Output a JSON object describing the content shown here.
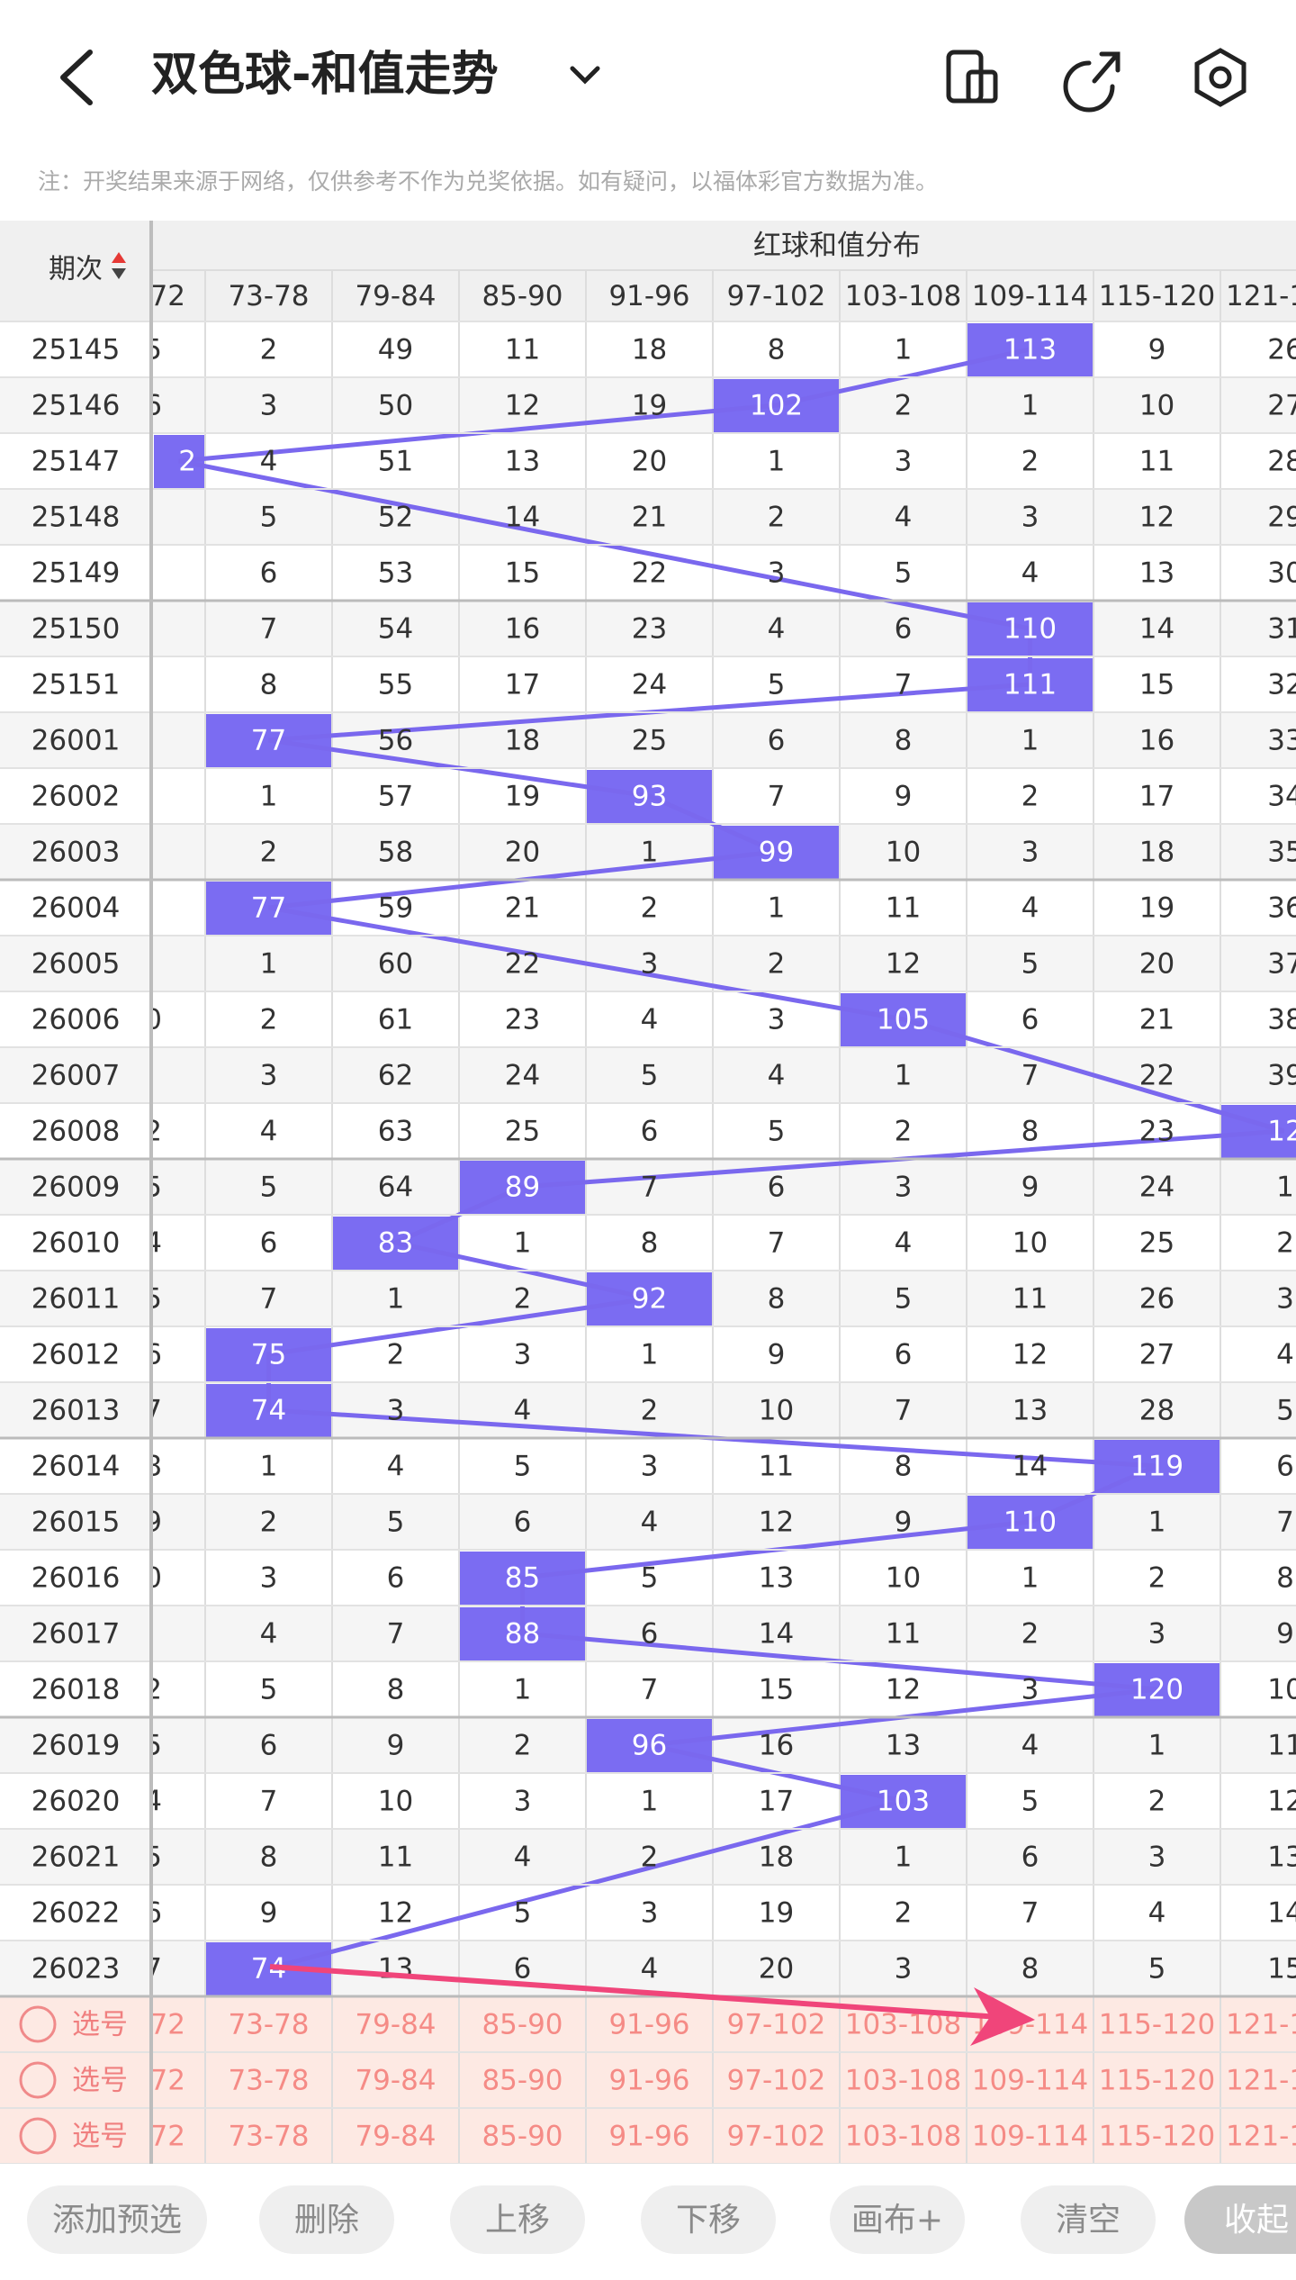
{
  "header": {
    "title": "双色球-和值走势"
  },
  "notice": "注：开奖结果来源于网络，仅供参考不作为兑奖依据。如有疑问，以福体彩官方数据为准。",
  "table": {
    "period_header": "期次",
    "group_header": "红球和值分布",
    "columns": [
      "72",
      "73-78",
      "79-84",
      "85-90",
      "91-96",
      "97-102",
      "103-108",
      "109-114",
      "115-120",
      "121-1"
    ],
    "rows": [
      {
        "period": "25145",
        "cells": [
          5,
          2,
          49,
          11,
          18,
          8,
          1,
          113,
          9,
          26
        ],
        "hit": 7
      },
      {
        "period": "25146",
        "cells": [
          6,
          3,
          50,
          12,
          19,
          102,
          2,
          1,
          10,
          27
        ],
        "hit": 5
      },
      {
        "period": "25147",
        "cells": [
          2,
          4,
          51,
          13,
          20,
          1,
          3,
          2,
          11,
          28
        ],
        "hit": 0
      },
      {
        "period": "25148",
        "cells": [
          null,
          5,
          52,
          14,
          21,
          2,
          4,
          3,
          12,
          29
        ],
        "hit": null
      },
      {
        "period": "25149",
        "cells": [
          null,
          6,
          53,
          15,
          22,
          3,
          5,
          4,
          13,
          30
        ],
        "hit": null
      },
      {
        "period": "25150",
        "cells": [
          null,
          7,
          54,
          16,
          23,
          4,
          6,
          110,
          14,
          31
        ],
        "hit": 7
      },
      {
        "period": "25151",
        "cells": [
          null,
          8,
          55,
          17,
          24,
          5,
          7,
          111,
          15,
          32
        ],
        "hit": 7
      },
      {
        "period": "26001",
        "cells": [
          null,
          77,
          56,
          18,
          25,
          6,
          8,
          1,
          16,
          33
        ],
        "hit": 1
      },
      {
        "period": "26002",
        "cells": [
          null,
          1,
          57,
          19,
          93,
          7,
          9,
          2,
          17,
          34
        ],
        "hit": 4
      },
      {
        "period": "26003",
        "cells": [
          null,
          2,
          58,
          20,
          1,
          99,
          10,
          3,
          18,
          35
        ],
        "hit": 5
      },
      {
        "period": "26004",
        "cells": [
          null,
          77,
          59,
          21,
          2,
          1,
          11,
          4,
          19,
          36
        ],
        "hit": 1
      },
      {
        "period": "26005",
        "cells": [
          null,
          1,
          60,
          22,
          3,
          2,
          12,
          5,
          20,
          37
        ],
        "hit": null
      },
      {
        "period": "26006",
        "cells": [
          0,
          2,
          61,
          23,
          4,
          3,
          105,
          6,
          21,
          38
        ],
        "hit": 6
      },
      {
        "period": "26007",
        "cells": [
          null,
          3,
          62,
          24,
          5,
          4,
          1,
          7,
          22,
          39
        ],
        "hit": null
      },
      {
        "period": "26008",
        "cells": [
          2,
          4,
          63,
          25,
          6,
          5,
          2,
          8,
          23,
          12
        ],
        "hit": 9
      },
      {
        "period": "26009",
        "cells": [
          5,
          5,
          64,
          89,
          7,
          6,
          3,
          9,
          24,
          1
        ],
        "hit": 3
      },
      {
        "period": "26010",
        "cells": [
          4,
          6,
          83,
          1,
          8,
          7,
          4,
          10,
          25,
          2
        ],
        "hit": 2
      },
      {
        "period": "26011",
        "cells": [
          5,
          7,
          1,
          2,
          92,
          8,
          5,
          11,
          26,
          3
        ],
        "hit": 4
      },
      {
        "period": "26012",
        "cells": [
          6,
          75,
          2,
          3,
          1,
          9,
          6,
          12,
          27,
          4
        ],
        "hit": 1
      },
      {
        "period": "26013",
        "cells": [
          7,
          74,
          3,
          4,
          2,
          10,
          7,
          13,
          28,
          5
        ],
        "hit": 1
      },
      {
        "period": "26014",
        "cells": [
          8,
          1,
          4,
          5,
          3,
          11,
          8,
          14,
          119,
          6
        ],
        "hit": 8
      },
      {
        "period": "26015",
        "cells": [
          9,
          2,
          5,
          6,
          4,
          12,
          9,
          110,
          1,
          7
        ],
        "hit": 7
      },
      {
        "period": "26016",
        "cells": [
          0,
          3,
          6,
          85,
          5,
          13,
          10,
          1,
          2,
          8
        ],
        "hit": 3
      },
      {
        "period": "26017",
        "cells": [
          null,
          4,
          7,
          88,
          6,
          14,
          11,
          2,
          3,
          9
        ],
        "hit": 3
      },
      {
        "period": "26018",
        "cells": [
          2,
          5,
          8,
          1,
          7,
          15,
          12,
          3,
          120,
          10
        ],
        "hit": 8
      },
      {
        "period": "26019",
        "cells": [
          5,
          6,
          9,
          2,
          96,
          16,
          13,
          4,
          1,
          11
        ],
        "hit": 4
      },
      {
        "period": "26020",
        "cells": [
          4,
          7,
          10,
          3,
          1,
          17,
          103,
          5,
          2,
          12
        ],
        "hit": 6
      },
      {
        "period": "26021",
        "cells": [
          5,
          8,
          11,
          4,
          2,
          18,
          1,
          6,
          3,
          13
        ],
        "hit": null
      },
      {
        "period": "26022",
        "cells": [
          6,
          9,
          12,
          5,
          3,
          19,
          2,
          7,
          4,
          14
        ],
        "hit": null
      },
      {
        "period": "26023",
        "cells": [
          7,
          74,
          13,
          6,
          4,
          20,
          3,
          8,
          5,
          15
        ],
        "hit": 1
      }
    ],
    "pick_rows": [
      "选号",
      "选号",
      "选号"
    ]
  },
  "buttons": [
    "添加预选",
    "删除",
    "上移",
    "下移",
    "画布+",
    "清空",
    "收起"
  ]
}
